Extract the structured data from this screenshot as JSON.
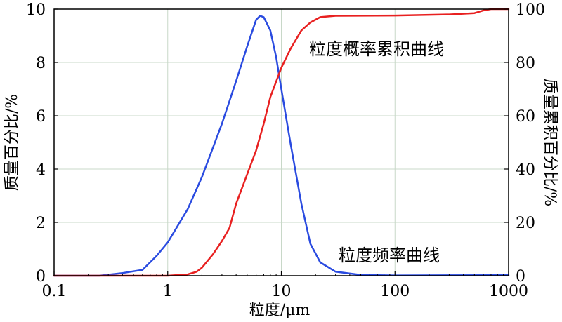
{
  "chart_data": {
    "type": "line",
    "xscale": "log",
    "xlim": [
      0.1,
      1000
    ],
    "ylim_left": [
      0,
      10
    ],
    "ylim_right": [
      0,
      100
    ],
    "grid": true,
    "xlabel": "粒度/μm",
    "ylabel_left": "质量百分比/%",
    "ylabel_right": "质量累积百分比/%",
    "x_ticks": [
      "0.1",
      "1",
      "10",
      "100",
      "1000"
    ],
    "y_left_ticks": [
      "0",
      "2",
      "4",
      "6",
      "8",
      "10"
    ],
    "y_right_ticks": [
      "0",
      "20",
      "40",
      "60",
      "80",
      "100"
    ],
    "series": [
      {
        "name": "粒度频率曲线",
        "axis": "left",
        "color": "#2a4be0",
        "points": [
          [
            0.1,
            0
          ],
          [
            0.25,
            0
          ],
          [
            0.4,
            0.1
          ],
          [
            0.6,
            0.22
          ],
          [
            0.8,
            0.75
          ],
          [
            1.0,
            1.25
          ],
          [
            1.5,
            2.5
          ],
          [
            2.0,
            3.7
          ],
          [
            3.0,
            5.7
          ],
          [
            4.0,
            7.3
          ],
          [
            5.0,
            8.6
          ],
          [
            6.0,
            9.6
          ],
          [
            6.5,
            9.75
          ],
          [
            7.0,
            9.7
          ],
          [
            8.0,
            9.2
          ],
          [
            9.0,
            8.2
          ],
          [
            10.0,
            7.0
          ],
          [
            12.0,
            5.0
          ],
          [
            15.0,
            2.7
          ],
          [
            18.0,
            1.2
          ],
          [
            22.0,
            0.5
          ],
          [
            30.0,
            0.15
          ],
          [
            50.0,
            0.03
          ],
          [
            100.0,
            0.01
          ],
          [
            700.0,
            0.02
          ],
          [
            1000.0,
            0.02
          ]
        ]
      },
      {
        "name": "粒度概率累积曲线",
        "axis": "right",
        "color": "#e82020",
        "points": [
          [
            0.1,
            0
          ],
          [
            1.0,
            0
          ],
          [
            1.5,
            0.5
          ],
          [
            1.8,
            1.5
          ],
          [
            2.0,
            3
          ],
          [
            2.5,
            8
          ],
          [
            3.0,
            13
          ],
          [
            3.5,
            18
          ],
          [
            4.0,
            27
          ],
          [
            5.0,
            38
          ],
          [
            6.0,
            47
          ],
          [
            7.0,
            57
          ],
          [
            8.0,
            67
          ],
          [
            10.0,
            78
          ],
          [
            12.0,
            85
          ],
          [
            15.0,
            92
          ],
          [
            18.0,
            95
          ],
          [
            22.0,
            97
          ],
          [
            30.0,
            97.5
          ],
          [
            100.0,
            97.6
          ],
          [
            300.0,
            98
          ],
          [
            500.0,
            98.5
          ],
          [
            600.0,
            99.5
          ],
          [
            700.0,
            100
          ],
          [
            1000.0,
            100
          ]
        ]
      }
    ],
    "annotations": [
      "粒度概率累积曲线",
      "粒度频率曲线"
    ]
  }
}
